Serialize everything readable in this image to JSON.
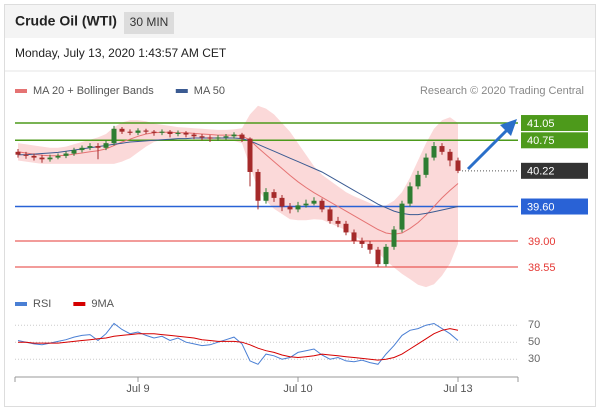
{
  "header": {
    "title": "Crude Oil (WTI)",
    "timeframe": "30 MIN",
    "date": "Monday, July 13, 2020 1:43:57 AM CET",
    "source": "Research © 2020 Trading Central"
  },
  "chart_data": [
    {
      "type": "candlestick",
      "up_color": "#2e7d32",
      "down_color": "#a52a2a",
      "ylim": [
        38.15,
        41.45
      ],
      "open": [
        40.55,
        40.5,
        40.48,
        40.45,
        40.42,
        40.45,
        40.48,
        40.52,
        40.58,
        40.62,
        40.65,
        40.62,
        40.7,
        40.95,
        40.9,
        40.88,
        40.92,
        40.9,
        40.88,
        40.9,
        40.86,
        40.88,
        40.85,
        40.82,
        40.8,
        40.78,
        40.8,
        40.82,
        40.85,
        40.78,
        40.2,
        39.7,
        39.85,
        39.75,
        39.6,
        39.55,
        39.62,
        39.65,
        39.7,
        39.55,
        39.35,
        39.3,
        39.15,
        39.0,
        38.95,
        38.85,
        38.6,
        38.9,
        39.2,
        39.65,
        39.95,
        40.15,
        40.45,
        40.65,
        40.55,
        40.4
      ],
      "high": [
        40.6,
        40.55,
        40.52,
        40.5,
        40.5,
        40.52,
        40.56,
        40.62,
        40.66,
        40.7,
        40.7,
        40.75,
        41.0,
        40.98,
        40.94,
        40.96,
        40.95,
        40.93,
        40.94,
        40.93,
        40.92,
        40.91,
        40.88,
        40.86,
        40.84,
        40.84,
        40.86,
        40.89,
        40.88,
        40.8,
        40.25,
        39.92,
        39.9,
        39.8,
        39.66,
        39.68,
        39.72,
        39.76,
        39.74,
        39.6,
        39.42,
        39.35,
        39.2,
        39.06,
        39.0,
        38.9,
        38.95,
        39.26,
        39.7,
        40.02,
        40.22,
        40.52,
        40.72,
        40.7,
        40.6,
        40.45
      ],
      "low": [
        40.45,
        40.43,
        40.4,
        40.36,
        40.38,
        40.42,
        40.44,
        40.48,
        40.54,
        40.58,
        40.42,
        40.58,
        40.66,
        40.86,
        40.84,
        40.84,
        40.86,
        40.83,
        40.84,
        40.8,
        40.82,
        40.8,
        40.77,
        40.75,
        40.72,
        40.74,
        40.76,
        40.78,
        40.72,
        39.95,
        39.55,
        39.65,
        39.68,
        39.52,
        39.48,
        39.5,
        39.58,
        39.62,
        39.5,
        39.3,
        39.24,
        39.1,
        38.95,
        38.88,
        38.78,
        38.55,
        38.56,
        38.85,
        39.15,
        39.6,
        39.9,
        40.1,
        40.4,
        40.5,
        40.3,
        40.18
      ],
      "close": [
        40.5,
        40.48,
        40.45,
        40.42,
        40.45,
        40.48,
        40.52,
        40.58,
        40.62,
        40.65,
        40.62,
        40.7,
        40.95,
        40.9,
        40.88,
        40.92,
        40.9,
        40.88,
        40.9,
        40.86,
        40.88,
        40.85,
        40.82,
        40.8,
        40.78,
        40.8,
        40.82,
        40.85,
        40.78,
        40.2,
        39.7,
        39.85,
        39.75,
        39.6,
        39.55,
        39.62,
        39.65,
        39.7,
        39.55,
        39.35,
        39.3,
        39.15,
        39.0,
        38.95,
        38.85,
        38.6,
        38.9,
        39.2,
        39.65,
        39.95,
        40.15,
        40.45,
        40.65,
        40.55,
        40.4,
        40.22
      ],
      "series": [
        {
          "name": "MA 20 + Bollinger Bands",
          "color": "#e57373",
          "band_color": "#fbd9d9",
          "values": [
            40.55,
            40.53,
            40.51,
            40.49,
            40.48,
            40.48,
            40.49,
            40.51,
            40.53,
            40.55,
            40.57,
            40.6,
            40.66,
            40.72,
            40.77,
            40.82,
            40.86,
            40.88,
            40.89,
            40.89,
            40.88,
            40.88,
            40.87,
            40.86,
            40.85,
            40.84,
            40.84,
            40.84,
            40.83,
            40.75,
            40.62,
            40.5,
            40.38,
            40.26,
            40.14,
            40.03,
            39.93,
            39.84,
            39.76,
            39.68,
            39.6,
            39.52,
            39.44,
            39.36,
            39.28,
            39.2,
            39.14,
            39.12,
            39.14,
            39.22,
            39.32,
            39.45,
            39.6,
            39.75,
            39.88,
            40.0
          ],
          "upper": [
            40.7,
            40.68,
            40.66,
            40.64,
            40.62,
            40.62,
            40.64,
            40.68,
            40.72,
            40.76,
            40.8,
            40.86,
            40.98,
            41.06,
            41.1,
            41.1,
            41.08,
            41.04,
            41.02,
            41.0,
            40.98,
            40.97,
            40.96,
            40.95,
            40.94,
            40.93,
            40.93,
            40.94,
            40.96,
            41.2,
            41.35,
            41.3,
            41.2,
            41.05,
            40.9,
            40.7,
            40.5,
            40.3,
            40.15,
            40.05,
            39.95,
            39.85,
            39.78,
            39.72,
            39.66,
            39.6,
            39.62,
            39.7,
            39.85,
            40.1,
            40.4,
            40.7,
            40.95,
            41.1,
            41.15,
            41.05
          ],
          "lower": [
            40.4,
            40.38,
            40.36,
            40.34,
            40.34,
            40.34,
            40.34,
            40.34,
            40.34,
            40.34,
            40.34,
            40.34,
            40.34,
            40.38,
            40.44,
            40.54,
            40.64,
            40.72,
            40.76,
            40.78,
            40.78,
            40.79,
            40.78,
            40.77,
            40.76,
            40.75,
            40.75,
            40.74,
            40.7,
            40.3,
            39.9,
            39.7,
            39.56,
            39.47,
            39.38,
            39.36,
            39.36,
            39.38,
            39.37,
            39.31,
            39.25,
            39.19,
            39.1,
            39.0,
            38.9,
            38.8,
            38.66,
            38.54,
            38.43,
            38.34,
            38.24,
            38.2,
            38.25,
            38.4,
            38.61,
            38.95
          ]
        },
        {
          "name": "MA 50",
          "color": "#3b5b92",
          "values": [
            40.5,
            40.5,
            40.51,
            40.52,
            40.53,
            40.54,
            40.56,
            40.58,
            40.6,
            40.62,
            40.64,
            40.66,
            40.68,
            40.7,
            40.72,
            40.73,
            40.74,
            40.75,
            40.76,
            40.77,
            40.78,
            40.78,
            40.79,
            40.79,
            40.79,
            40.79,
            40.79,
            40.79,
            40.78,
            40.74,
            40.68,
            40.62,
            40.56,
            40.5,
            40.44,
            40.38,
            40.32,
            40.26,
            40.2,
            40.12,
            40.04,
            39.96,
            39.88,
            39.8,
            39.72,
            39.64,
            39.58,
            39.52,
            39.48,
            39.46,
            39.46,
            39.48,
            39.51,
            39.54,
            39.57,
            39.6
          ]
        }
      ],
      "levels": [
        {
          "value": 41.05,
          "color": "#4d9a1b",
          "boxed": true,
          "line": "solid"
        },
        {
          "value": 40.75,
          "color": "#4d9a1b",
          "boxed": true,
          "line": "solid"
        },
        {
          "value": 40.22,
          "color": "#333333",
          "boxed": true,
          "line": "dotted"
        },
        {
          "value": 39.6,
          "label": "39.60",
          "color": "#2962d6",
          "boxed": true,
          "line": "solid"
        },
        {
          "value": 39,
          "label": "39.00",
          "color": "#e53935",
          "boxed": false,
          "line": "solid"
        },
        {
          "value": 38.55,
          "color": "#e53935",
          "boxed": false,
          "line": "solid"
        }
      ]
    },
    {
      "type": "line",
      "ylim": [
        15,
        82
      ],
      "yticks": [
        70,
        50,
        30
      ],
      "grid": true,
      "categories": [
        null,
        null,
        null,
        null,
        null,
        null,
        null,
        null,
        null,
        null,
        null,
        null,
        null,
        null,
        null,
        "Jul 9",
        null,
        null,
        null,
        null,
        null,
        null,
        null,
        null,
        null,
        null,
        null,
        null,
        null,
        null,
        null,
        null,
        null,
        null,
        null,
        "Jul 10",
        null,
        null,
        null,
        null,
        null,
        null,
        null,
        null,
        null,
        null,
        null,
        null,
        null,
        null,
        null,
        null,
        null,
        null,
        null,
        "Jul 13"
      ],
      "series": [
        {
          "name": "RSI",
          "color": "#4a7fd4",
          "values": [
            52,
            50,
            48,
            47,
            49,
            51,
            53,
            56,
            58,
            59,
            52,
            60,
            72,
            65,
            60,
            62,
            58,
            55,
            57,
            52,
            55,
            50,
            48,
            46,
            47,
            50,
            53,
            56,
            48,
            28,
            24,
            36,
            34,
            30,
            32,
            38,
            40,
            42,
            35,
            30,
            32,
            28,
            27,
            29,
            26,
            24,
            36,
            46,
            58,
            64,
            66,
            70,
            72,
            66,
            60,
            52
          ]
        },
        {
          "name": "9MA",
          "color": "#d50000",
          "values": [
            50,
            50,
            49,
            49,
            49,
            49,
            50,
            51,
            52,
            53,
            54,
            55,
            57,
            58,
            59,
            60,
            60,
            60,
            59,
            58,
            57,
            56,
            55,
            53,
            52,
            51,
            51,
            51,
            50,
            47,
            43,
            40,
            38,
            35,
            33,
            32,
            33,
            34,
            36,
            35,
            34,
            33,
            32,
            31,
            30,
            29,
            30,
            32,
            36,
            42,
            48,
            54,
            60,
            64,
            66,
            64
          ]
        }
      ]
    }
  ]
}
